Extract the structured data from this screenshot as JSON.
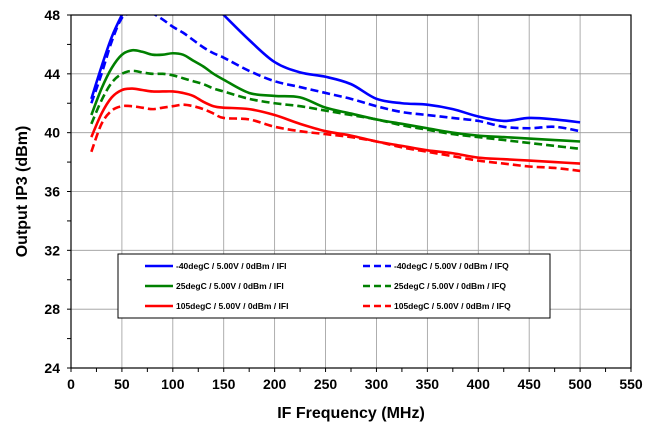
{
  "chart_data": {
    "type": "line",
    "title": "",
    "xlabel": "IF Frequency (MHz)",
    "ylabel": "Output IP3 (dBm)",
    "xlim": [
      0,
      550
    ],
    "ylim": [
      24,
      48
    ],
    "xticks": [
      0,
      50,
      100,
      150,
      200,
      250,
      300,
      350,
      400,
      450,
      500,
      550
    ],
    "yticks": [
      24,
      28,
      32,
      36,
      40,
      44,
      48
    ],
    "grid": true,
    "legend_position": "inside-bottom",
    "series": [
      {
        "name": "-40degC / 5.00V / 0dBm / IFI",
        "color": "#0000ff",
        "dash": "solid",
        "x": [
          20,
          30,
          40,
          50,
          60,
          70,
          80,
          90,
          100,
          110,
          120,
          130,
          140,
          150,
          175,
          200,
          225,
          250,
          275,
          300,
          325,
          350,
          375,
          400,
          425,
          450,
          475,
          500
        ],
        "y": [
          42.3,
          44.5,
          46.5,
          48.0,
          49.3,
          49.9,
          49.9,
          49.7,
          49.6,
          49.5,
          49.4,
          49.2,
          48.7,
          48.0,
          46.3,
          44.8,
          44.1,
          43.8,
          43.3,
          42.3,
          42.0,
          41.9,
          41.6,
          41.1,
          40.8,
          41.0,
          40.9,
          40.7
        ]
      },
      {
        "name": "-40degC / 5.00V / 0dBm / IFQ",
        "color": "#0000ff",
        "dash": "dashed",
        "x": [
          20,
          30,
          40,
          50,
          60,
          70,
          80,
          90,
          100,
          110,
          120,
          130,
          140,
          150,
          175,
          200,
          225,
          250,
          275,
          300,
          325,
          350,
          375,
          400,
          425,
          450,
          475,
          500
        ],
        "y": [
          42.0,
          44.0,
          46.2,
          47.8,
          48.1,
          48.2,
          48.1,
          47.7,
          47.2,
          46.8,
          46.3,
          45.8,
          45.4,
          45.1,
          44.2,
          43.5,
          43.1,
          42.7,
          42.3,
          41.8,
          41.4,
          41.2,
          41.0,
          40.8,
          40.4,
          40.3,
          40.4,
          40.1
        ]
      },
      {
        "name": "25degC / 5.00V / 0dBm / IFI",
        "color": "#008000",
        "dash": "solid",
        "x": [
          20,
          30,
          40,
          50,
          60,
          70,
          80,
          90,
          100,
          110,
          120,
          130,
          140,
          150,
          175,
          200,
          225,
          250,
          275,
          300,
          325,
          350,
          375,
          400,
          425,
          450,
          475,
          500
        ],
        "y": [
          41.2,
          43.0,
          44.4,
          45.3,
          45.6,
          45.5,
          45.3,
          45.3,
          45.4,
          45.3,
          44.9,
          44.5,
          44.0,
          43.6,
          42.7,
          42.5,
          42.4,
          41.7,
          41.3,
          40.9,
          40.6,
          40.3,
          40.0,
          39.8,
          39.7,
          39.6,
          39.5,
          39.4
        ]
      },
      {
        "name": "25degC / 5.00V / 0dBm / IFQ",
        "color": "#008000",
        "dash": "dashed",
        "x": [
          20,
          30,
          40,
          50,
          60,
          70,
          80,
          90,
          100,
          110,
          120,
          130,
          140,
          150,
          175,
          200,
          225,
          250,
          275,
          300,
          325,
          350,
          375,
          400,
          425,
          450,
          475,
          500
        ],
        "y": [
          40.6,
          42.2,
          43.4,
          44.0,
          44.2,
          44.1,
          44.0,
          44.0,
          43.9,
          43.7,
          43.5,
          43.3,
          43.0,
          42.8,
          42.3,
          42.0,
          41.8,
          41.5,
          41.2,
          40.9,
          40.5,
          40.2,
          39.9,
          39.7,
          39.5,
          39.3,
          39.1,
          38.9
        ]
      },
      {
        "name": "105degC / 5.00V / 0dBm / IFI",
        "color": "#ff0000",
        "dash": "solid",
        "x": [
          20,
          30,
          40,
          50,
          60,
          70,
          80,
          90,
          100,
          110,
          120,
          130,
          140,
          150,
          175,
          200,
          225,
          250,
          275,
          300,
          325,
          350,
          375,
          400,
          425,
          450,
          475,
          500
        ],
        "y": [
          39.7,
          41.3,
          42.4,
          42.9,
          43.0,
          42.9,
          42.8,
          42.8,
          42.8,
          42.7,
          42.5,
          42.1,
          41.8,
          41.7,
          41.6,
          41.2,
          40.6,
          40.1,
          39.8,
          39.4,
          39.1,
          38.8,
          38.6,
          38.3,
          38.2,
          38.1,
          38.0,
          37.9
        ]
      },
      {
        "name": "105degC / 5.00V / 0dBm / IFQ",
        "color": "#ff0000",
        "dash": "dashed",
        "x": [
          20,
          30,
          40,
          50,
          60,
          70,
          80,
          90,
          100,
          110,
          120,
          130,
          140,
          150,
          175,
          200,
          225,
          250,
          275,
          300,
          325,
          350,
          375,
          400,
          425,
          450,
          475,
          500
        ],
        "y": [
          38.7,
          40.6,
          41.5,
          41.8,
          41.8,
          41.7,
          41.6,
          41.7,
          41.8,
          41.9,
          41.8,
          41.6,
          41.3,
          41.0,
          40.9,
          40.4,
          40.1,
          39.9,
          39.7,
          39.4,
          39.0,
          38.7,
          38.4,
          38.1,
          37.9,
          37.7,
          37.6,
          37.4
        ]
      }
    ]
  }
}
